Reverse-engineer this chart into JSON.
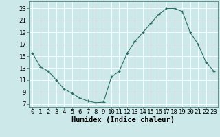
{
  "x": [
    0,
    1,
    2,
    3,
    4,
    5,
    6,
    7,
    8,
    9,
    10,
    11,
    12,
    13,
    14,
    15,
    16,
    17,
    18,
    19,
    20,
    21,
    22,
    23
  ],
  "y": [
    15.5,
    13.2,
    12.5,
    11.0,
    9.5,
    8.8,
    8.0,
    7.5,
    7.2,
    7.3,
    11.5,
    12.5,
    15.5,
    17.5,
    19.0,
    20.5,
    22.0,
    23.0,
    23.0,
    22.5,
    19.0,
    17.0,
    14.0,
    12.5
  ],
  "line_color": "#2d6e63",
  "marker": "+",
  "bg_color": "#cce8e8",
  "grid_color": "#ffffff",
  "xlabel": "Humidex (Indice chaleur)",
  "xlabel_fontsize": 7.5,
  "xticks": [
    0,
    1,
    2,
    3,
    4,
    5,
    6,
    7,
    8,
    9,
    10,
    11,
    12,
    13,
    14,
    15,
    16,
    17,
    18,
    19,
    20,
    21,
    22,
    23
  ],
  "yticks": [
    7,
    9,
    11,
    13,
    15,
    17,
    19,
    21,
    23
  ],
  "ylim": [
    6.5,
    24.2
  ],
  "xlim": [
    -0.5,
    23.5
  ],
  "tick_fontsize": 6.5
}
